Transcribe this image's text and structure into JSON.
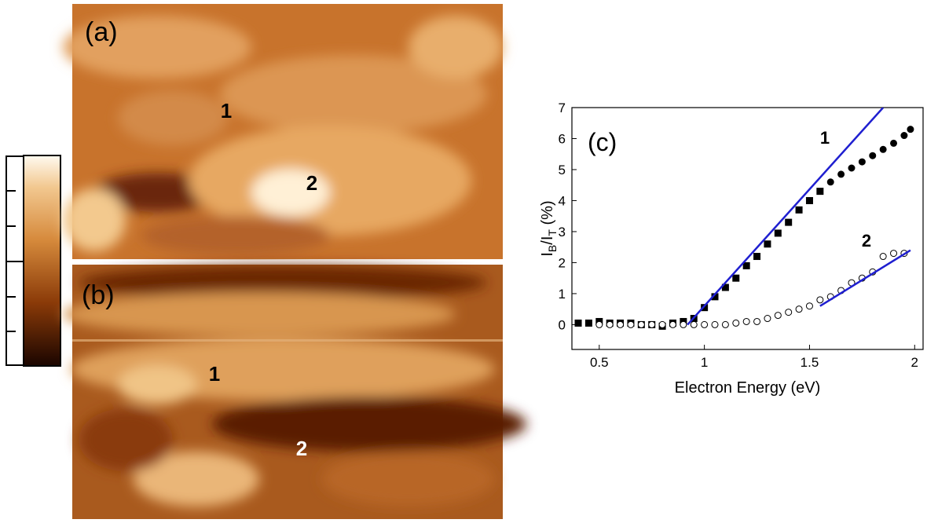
{
  "images": {
    "a": {
      "label": "(a)",
      "markers": [
        "1",
        "2"
      ]
    },
    "b": {
      "label": "(b)",
      "markers": [
        "1",
        "2"
      ]
    }
  },
  "chart_data": {
    "type": "scatter",
    "panel_label": "(c)",
    "xlabel": "Electron Energy (eV)",
    "ylabel_parts": [
      "I",
      "B",
      "/I",
      "T",
      " (%)"
    ],
    "annotations": [
      "1",
      "2"
    ],
    "xlim": [
      0.37,
      2.04
    ],
    "xticks": [
      0.5,
      1,
      1.5,
      2
    ],
    "ylim": [
      -0.8,
      7
    ],
    "yticks": [
      0,
      1,
      2,
      3,
      4,
      5,
      6,
      7
    ],
    "series": [
      {
        "marker": "square",
        "fill": "#000",
        "color": "#000",
        "x": [
          0.4,
          0.45,
          0.5,
          0.55,
          0.6,
          0.65,
          0.7,
          0.75,
          0.8,
          0.85,
          0.9,
          0.95,
          1.0,
          1.05,
          1.1,
          1.15,
          1.2,
          1.25,
          1.3,
          1.35,
          1.4,
          1.45,
          1.5,
          1.55
        ],
        "values": [
          0.05,
          0.05,
          0.1,
          0.05,
          0.05,
          0.05,
          0.0,
          0.0,
          -0.05,
          0.05,
          0.1,
          0.2,
          0.55,
          0.9,
          1.2,
          1.5,
          1.9,
          2.2,
          2.6,
          2.95,
          3.3,
          3.7,
          4.0,
          4.3
        ]
      },
      {
        "marker": "circle",
        "fill": "#000",
        "color": "#000",
        "x": [
          1.6,
          1.65,
          1.7,
          1.75,
          1.8,
          1.85,
          1.9,
          1.95,
          1.98
        ],
        "values": [
          4.6,
          4.85,
          5.05,
          5.25,
          5.45,
          5.65,
          5.85,
          6.1,
          6.3
        ]
      },
      {
        "marker": "circle",
        "fill": "#fff",
        "color": "#000",
        "x": [
          0.5,
          0.55,
          0.6,
          0.65,
          0.7,
          0.75,
          0.8,
          0.85,
          0.9,
          0.95,
          1.0,
          1.05,
          1.1,
          1.15,
          1.2,
          1.25,
          1.3,
          1.35,
          1.4,
          1.45,
          1.5,
          1.55,
          1.6,
          1.65,
          1.7,
          1.75,
          1.8,
          1.85,
          1.9,
          1.95
        ],
        "values": [
          0,
          0,
          0,
          0,
          0,
          0,
          0,
          0,
          0,
          0,
          0,
          0,
          0,
          0.05,
          0.1,
          0.1,
          0.2,
          0.3,
          0.4,
          0.5,
          0.6,
          0.8,
          0.9,
          1.1,
          1.35,
          1.5,
          1.7,
          2.2,
          2.3,
          2.3
        ]
      },
      {
        "marker": "line",
        "color": "#1f1fd0",
        "x": [
          0.92,
          1.85
        ],
        "values": [
          0,
          7
        ]
      },
      {
        "marker": "line",
        "color": "#1f1fd0",
        "x": [
          1.55,
          1.98
        ],
        "values": [
          0.6,
          2.4
        ]
      }
    ]
  }
}
